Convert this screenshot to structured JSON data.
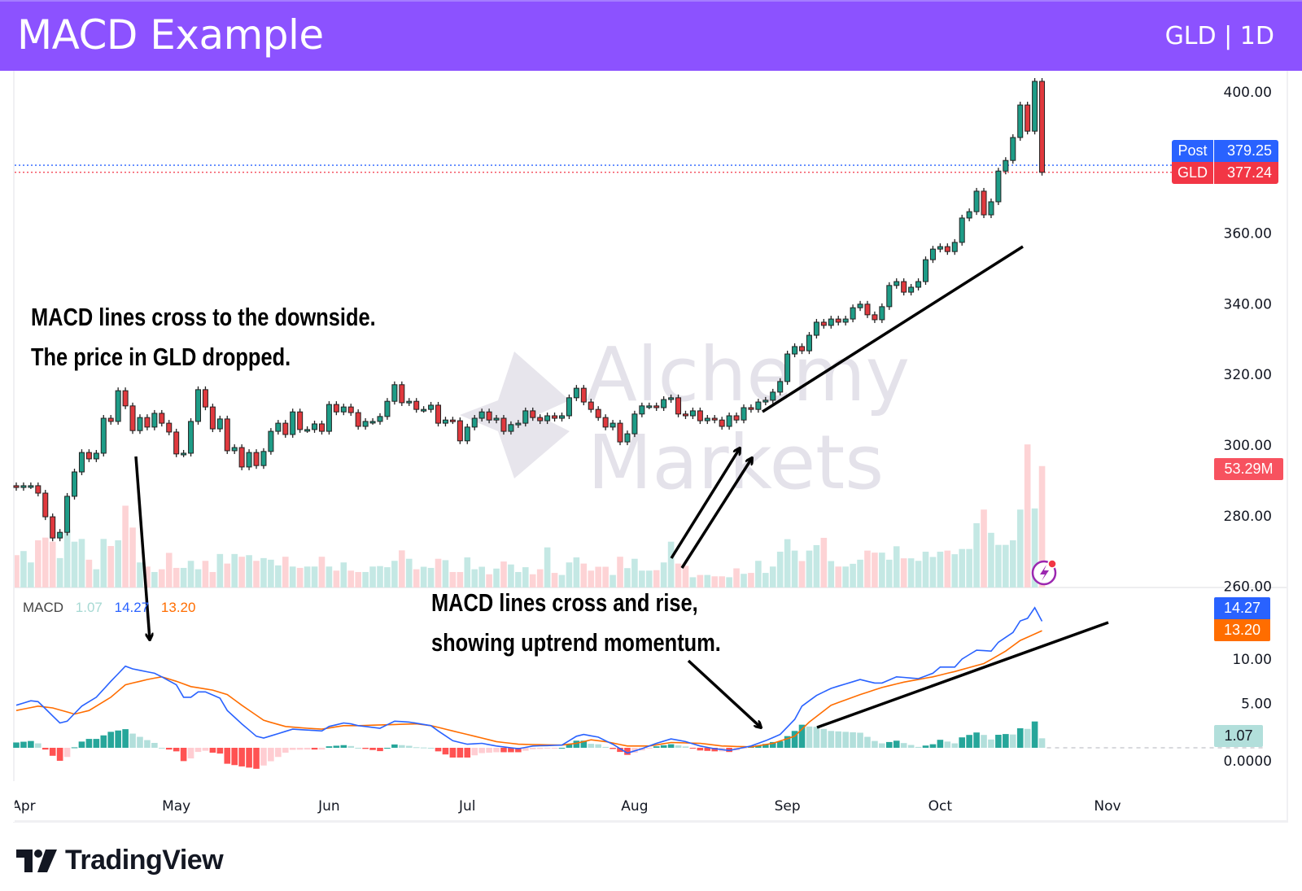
{
  "header": {
    "title": "MACD Example",
    "symbol": "GLD | 1D"
  },
  "watermark": {
    "line1": "Alchemy",
    "line2": "Markets"
  },
  "annotations": {
    "top_line1": "MACD lines cross to the downside.",
    "top_line2": "The price in GLD dropped.",
    "bottom_line1": "MACD lines cross and rise,",
    "bottom_line2": "showing uptrend momentum."
  },
  "price_tags": {
    "post_label": "Post",
    "post_value": "379.25",
    "last_label": "GLD",
    "last_value": "377.24",
    "volume_value": "53.29M"
  },
  "macd_legend": {
    "name": "MACD",
    "histogram": "1.07",
    "macd": "14.27",
    "signal": "13.20"
  },
  "macd_tags": {
    "macd": "14.27",
    "signal": "13.20",
    "histogram": "1.07"
  },
  "branding": {
    "name": "TradingView"
  },
  "colors": {
    "header": "#8c52ff",
    "up": "#1e9c87",
    "down": "#e0393e",
    "vol_up": "#c4e8e4",
    "vol_down": "#fdd3d5",
    "macd": "#2962ff",
    "signal": "#ff6d00",
    "hist_up_strong": "#26a69a",
    "hist_up_weak": "#b2dfdb",
    "hist_down_strong": "#ff5252",
    "hist_down_weak": "#ffcdd2",
    "post": "#2962ff",
    "last": "#f23645"
  },
  "chart_data": [
    {
      "type": "candlestick",
      "title": "",
      "ylabel": "",
      "ylim": [
        258,
        405
      ],
      "grid": false,
      "y_ticks": [
        "400.00",
        "360.00",
        "340.00",
        "320.00",
        "300.00",
        "280.00",
        "260.00"
      ],
      "x_ticks": [
        {
          "label": "Apr",
          "bar": 1
        },
        {
          "label": "May",
          "bar": 22
        },
        {
          "label": "Jun",
          "bar": 43
        },
        {
          "label": "Jul",
          "bar": 62
        },
        {
          "label": "Aug",
          "bar": 85
        },
        {
          "label": "Sep",
          "bar": 106
        },
        {
          "label": "Oct",
          "bar": 127
        },
        {
          "label": "Nov",
          "bar": 150
        }
      ],
      "post_price": 379.25,
      "last_price": 377.24,
      "close": [
        288.0,
        288.5,
        288.5,
        286.4,
        279.7,
        273.7,
        275.3,
        285.5,
        292.4,
        297.9,
        296.1,
        297.7,
        307.6,
        306.7,
        315.4,
        311.1,
        304.1,
        307.8,
        305.1,
        309.0,
        306.2,
        303.7,
        297.5,
        297.7,
        306.7,
        315.7,
        310.8,
        304.6,
        307.4,
        298.4,
        299.3,
        293.8,
        297.9,
        294.2,
        298.2,
        303.9,
        306.2,
        303.0,
        309.4,
        304.4,
        304.4,
        306.0,
        303.9,
        311.5,
        309.4,
        310.8,
        309.2,
        305.3,
        306.7,
        306.7,
        308.1,
        312.4,
        317.1,
        312.0,
        312.4,
        310.1,
        310.1,
        311.3,
        306.2,
        307.1,
        306.9,
        301.2,
        305.1,
        307.6,
        309.4,
        307.1,
        307.6,
        303.9,
        305.8,
        306.2,
        309.7,
        307.8,
        306.9,
        308.3,
        307.6,
        308.3,
        313.4,
        316.1,
        312.2,
        310.1,
        307.8,
        305.1,
        306.2,
        300.9,
        303.2,
        308.8,
        311.1,
        311.1,
        310.6,
        312.9,
        313.4,
        308.8,
        308.3,
        309.7,
        306.9,
        307.6,
        307.1,
        305.3,
        308.3,
        307.1,
        310.6,
        310.1,
        312.2,
        312.7,
        315.0,
        318.0,
        325.8,
        327.9,
        326.7,
        331.1,
        334.8,
        333.9,
        335.7,
        334.8,
        335.7,
        338.9,
        339.9,
        336.9,
        335.5,
        339.2,
        345.2,
        346.3,
        343.3,
        344.7,
        346.3,
        352.5,
        355.5,
        356.2,
        354.8,
        357.4,
        364.3,
        366.1,
        371.9,
        365.2,
        368.9,
        377.6,
        380.6,
        387.1,
        396.3,
        388.9,
        403.0,
        377.24
      ],
      "volume_unit": "M",
      "volume": [
        14.2,
        16.0,
        11.0,
        20.7,
        21.9,
        20.1,
        12.9,
        25.4,
        20.1,
        21.3,
        12.2,
        8.0,
        21.3,
        18.2,
        20.7,
        35.9,
        26.3,
        11.0,
        9.2,
        6.8,
        8.0,
        15.2,
        8.6,
        8.6,
        11.7,
        8.0,
        11.7,
        6.8,
        14.7,
        10.5,
        14.7,
        13.5,
        14.2,
        11.7,
        12.9,
        12.2,
        9.7,
        13.5,
        9.2,
        8.6,
        9.2,
        9.2,
        13.5,
        9.2,
        7.4,
        11.0,
        7.4,
        6.8,
        6.8,
        9.2,
        9.4,
        8.9,
        11.7,
        16.3,
        12.6,
        8.0,
        9.1,
        8.6,
        12.6,
        12.0,
        6.8,
        6.8,
        13.2,
        8.0,
        9.1,
        5.8,
        8.3,
        11.4,
        10.1,
        6.8,
        8.9,
        5.8,
        8.0,
        17.6,
        6.4,
        5.5,
        11.0,
        13.2,
        10.5,
        7.4,
        9.1,
        9.1,
        5.5,
        13.5,
        8.5,
        12.6,
        7.4,
        7.4,
        7.6,
        11.0,
        20.1,
        10.5,
        9.5,
        4.5,
        5.5,
        5.5,
        4.9,
        4.9,
        4.5,
        8.4,
        6.0,
        6.4,
        11.7,
        6.4,
        9.2,
        15.7,
        21.2,
        16.2,
        11.6,
        16.2,
        18.6,
        21.8,
        11.6,
        9.2,
        9.2,
        10.4,
        12.2,
        16.2,
        15.3,
        15.3,
        12.2,
        18.1,
        12.8,
        12.8,
        11.7,
        15.7,
        13.4,
        15.7,
        16.2,
        14.6,
        16.9,
        16.9,
        28.2,
        34.2,
        24.0,
        18.7,
        18.7,
        20.7,
        34.2,
        62.8,
        34.7,
        53.29
      ]
    },
    {
      "type": "line",
      "title": "",
      "ylim": [
        -2,
        17
      ],
      "y_ticks": [
        "10.00",
        "5.00",
        "0.0000"
      ],
      "series": [
        {
          "name": "MACD",
          "points": [
            [
              0,
              4.8
            ],
            [
              2,
              5.3
            ],
            [
              3,
              5.2
            ],
            [
              5,
              3.6
            ],
            [
              6,
              2.8
            ],
            [
              7,
              3.0
            ],
            [
              9,
              4.7
            ],
            [
              11,
              5.7
            ],
            [
              13,
              7.5
            ],
            [
              15,
              9.2
            ],
            [
              16,
              8.9
            ],
            [
              19,
              8.4
            ],
            [
              20,
              8.0
            ],
            [
              22,
              7.1
            ],
            [
              23,
              5.7
            ],
            [
              24,
              5.7
            ],
            [
              25,
              6.3
            ],
            [
              26,
              6.3
            ],
            [
              28,
              5.6
            ],
            [
              29,
              4.2
            ],
            [
              31,
              2.7
            ],
            [
              33,
              1.3
            ],
            [
              34,
              1.1
            ],
            [
              36,
              1.6
            ],
            [
              38,
              2.1
            ],
            [
              40,
              2.0
            ],
            [
              42,
              1.9
            ],
            [
              43,
              2.4
            ],
            [
              45,
              2.8
            ],
            [
              46,
              2.7
            ],
            [
              47,
              2.5
            ],
            [
              50,
              2.2
            ],
            [
              52,
              3.0
            ],
            [
              54,
              2.9
            ],
            [
              57,
              2.5
            ],
            [
              58,
              1.9
            ],
            [
              60,
              0.8
            ],
            [
              62,
              0.4
            ],
            [
              64,
              0.5
            ],
            [
              66,
              0.2
            ],
            [
              69,
              -0.1
            ],
            [
              71,
              0.2
            ],
            [
              75,
              0.3
            ],
            [
              77,
              1.3
            ],
            [
              78,
              1.5
            ],
            [
              80,
              1.2
            ],
            [
              82,
              0.4
            ],
            [
              84,
              -0.6
            ],
            [
              86,
              -0.1
            ],
            [
              88,
              0.5
            ],
            [
              90,
              1.0
            ],
            [
              92,
              0.7
            ],
            [
              94,
              0.2
            ],
            [
              96,
              -0.1
            ],
            [
              98,
              -0.3
            ],
            [
              101,
              0.2
            ],
            [
              102,
              0.5
            ],
            [
              103,
              0.8
            ],
            [
              105,
              1.5
            ],
            [
              107,
              3.2
            ],
            [
              108,
              4.7
            ],
            [
              110,
              5.9
            ],
            [
              112,
              6.7
            ],
            [
              114,
              7.2
            ],
            [
              116,
              7.7
            ],
            [
              118,
              7.3
            ],
            [
              119,
              7.3
            ],
            [
              121,
              8.0
            ],
            [
              124,
              7.8
            ],
            [
              126,
              8.4
            ],
            [
              127,
              9.1
            ],
            [
              129,
              9.1
            ],
            [
              130,
              10.0
            ],
            [
              132,
              11.0
            ],
            [
              134,
              10.9
            ],
            [
              135,
              11.9
            ],
            [
              137,
              13.0
            ],
            [
              138,
              14.3
            ],
            [
              139,
              14.6
            ],
            [
              140,
              15.8
            ],
            [
              141,
              14.27
            ]
          ]
        },
        {
          "name": "Signal",
          "points": [
            [
              0,
              4.2
            ],
            [
              3,
              4.7
            ],
            [
              5,
              4.5
            ],
            [
              8,
              3.8
            ],
            [
              10,
              4.2
            ],
            [
              13,
              5.7
            ],
            [
              15,
              7.1
            ],
            [
              18,
              7.7
            ],
            [
              20,
              8.0
            ],
            [
              22,
              7.5
            ],
            [
              24,
              6.9
            ],
            [
              27,
              6.5
            ],
            [
              29,
              6.0
            ],
            [
              31,
              4.8
            ],
            [
              34,
              3.1
            ],
            [
              37,
              2.4
            ],
            [
              40,
              2.2
            ],
            [
              42,
              2.1
            ],
            [
              45,
              2.5
            ],
            [
              47,
              2.5
            ],
            [
              55,
              2.7
            ],
            [
              57,
              2.5
            ],
            [
              62,
              1.5
            ],
            [
              66,
              0.7
            ],
            [
              69,
              0.4
            ],
            [
              75,
              0.3
            ],
            [
              77,
              0.5
            ],
            [
              79,
              0.9
            ],
            [
              81,
              0.7
            ],
            [
              84,
              0.2
            ],
            [
              87,
              0.2
            ],
            [
              90,
              0.6
            ],
            [
              94,
              0.5
            ],
            [
              97,
              0.2
            ],
            [
              101,
              0.1
            ],
            [
              104,
              0.5
            ],
            [
              107,
              1.3
            ],
            [
              109,
              2.9
            ],
            [
              112,
              4.8
            ],
            [
              116,
              6.0
            ],
            [
              119,
              6.8
            ],
            [
              122,
              7.4
            ],
            [
              126,
              8.0
            ],
            [
              129,
              8.6
            ],
            [
              133,
              9.5
            ],
            [
              136,
              10.9
            ],
            [
              138,
              12.1
            ],
            [
              141,
              13.2
            ]
          ]
        }
      ],
      "histogram": "MACD minus Signal"
    }
  ]
}
